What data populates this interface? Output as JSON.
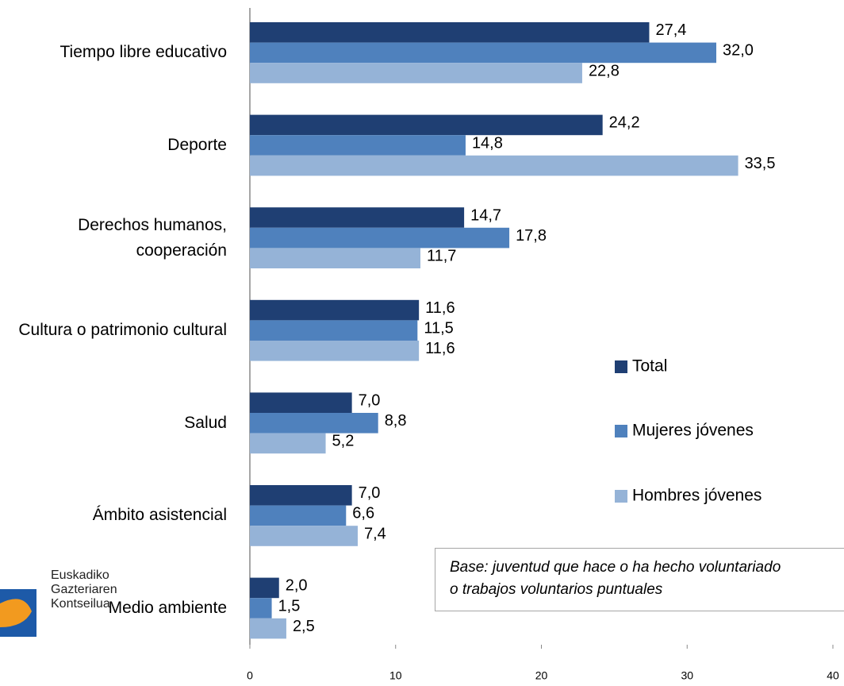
{
  "chart_data": {
    "type": "hbar",
    "categories": [
      "Tiempo libre educativo",
      "Deporte",
      "Derechos humanos, cooperación",
      "Cultura o patrimonio cultural",
      "Salud",
      "Ámbito asistencial",
      "Medio ambiente"
    ],
    "series": [
      {
        "name": "Total",
        "color": "#1f3f73",
        "values": [
          27.4,
          24.2,
          14.7,
          11.6,
          7.0,
          7.0,
          2.0
        ],
        "value_labels": [
          "27,4",
          "24,2",
          "14,7",
          "11,6",
          "7,0",
          "7,0",
          "2,0"
        ]
      },
      {
        "name": "Mujeres jóvenes",
        "color": "#4f81bd",
        "values": [
          32.0,
          14.8,
          17.8,
          11.5,
          8.8,
          6.6,
          1.5
        ],
        "value_labels": [
          "32,0",
          "14,8",
          "17,8",
          "11,5",
          "8,8",
          "6,6",
          "1,5"
        ]
      },
      {
        "name": "Hombres jóvenes",
        "color": "#95b3d7",
        "values": [
          22.8,
          33.5,
          11.7,
          11.6,
          5.2,
          7.4,
          2.5
        ],
        "value_labels": [
          "22,8",
          "33,5",
          "11,7",
          "11,6",
          "5,2",
          "7,4",
          "2,5"
        ]
      }
    ],
    "xlim": [
      0,
      40
    ],
    "xticks": [
      0,
      10,
      20,
      30,
      40
    ],
    "grid": false,
    "legend": "right",
    "annotation": [
      "Base: juventud que hace o ha hecho voluntariado",
      "o trabajos voluntarios puntuales"
    ]
  },
  "logo": [
    "Euskadiko",
    "Gazteriaren",
    "Kontseilua"
  ]
}
